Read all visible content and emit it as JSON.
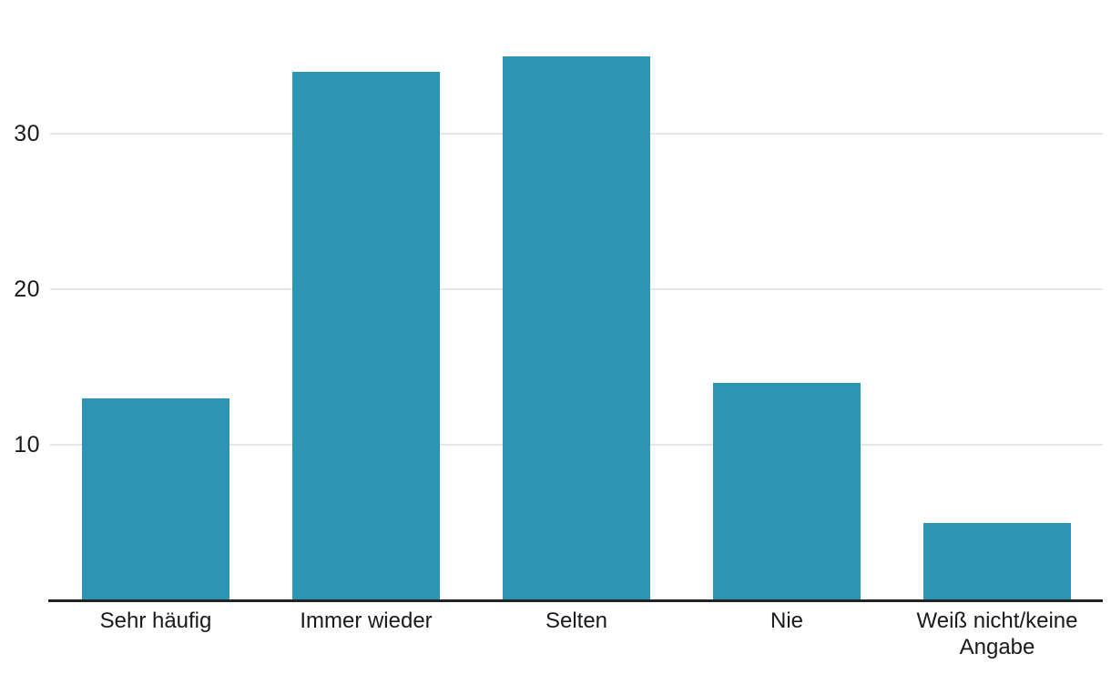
{
  "chart_data": {
    "type": "bar",
    "categories": [
      "Sehr häufig",
      "Immer wieder",
      "Selten",
      "Nie",
      "Weiß nicht/keine Angabe"
    ],
    "values": [
      13,
      34,
      35,
      14,
      5
    ],
    "yticks": [
      10,
      20,
      30
    ],
    "ylim": [
      0,
      38.6
    ],
    "title": "",
    "xlabel": "",
    "ylabel": "",
    "grid": "horizontal",
    "legend_position": "none",
    "bar_color": "#2e94b5",
    "gridline_color": "#e6e6e6",
    "axis_line_color": "#222222",
    "text_color": "#1a1a1a",
    "background_color": "#ffffff"
  }
}
